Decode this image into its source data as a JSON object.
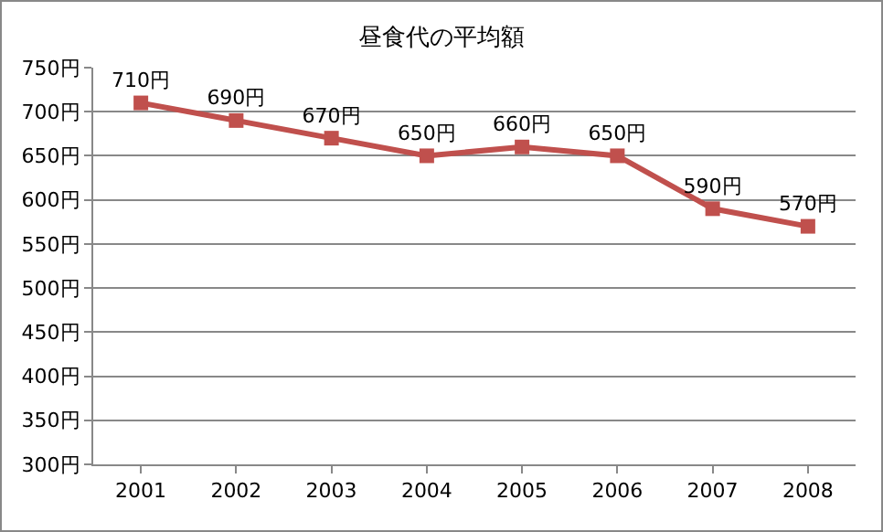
{
  "chart_data": {
    "type": "line",
    "title": "昼食代の平均額",
    "categories": [
      "2001",
      "2002",
      "2003",
      "2004",
      "2005",
      "2006",
      "2007",
      "2008"
    ],
    "series": [
      {
        "color": "#c0504d",
        "values": [
          710,
          690,
          670,
          650,
          660,
          650,
          590,
          570
        ],
        "value_labels": [
          "710円",
          "690円",
          "670円",
          "650円",
          "660円",
          "650円",
          "590円",
          "570円"
        ]
      }
    ],
    "ylim": [
      300,
      750
    ],
    "yticks": [
      {
        "value": 300,
        "label": "300円"
      },
      {
        "value": 350,
        "label": "350円"
      },
      {
        "value": 400,
        "label": "400円"
      },
      {
        "value": 450,
        "label": "450円"
      },
      {
        "value": 500,
        "label": "500円"
      },
      {
        "value": 550,
        "label": "550円"
      },
      {
        "value": 600,
        "label": "600円"
      },
      {
        "value": 650,
        "label": "650円"
      },
      {
        "value": 700,
        "label": "700円"
      },
      {
        "value": 750,
        "label": "750円"
      }
    ],
    "grid": "y",
    "marker": "square",
    "line_style": "solid"
  }
}
